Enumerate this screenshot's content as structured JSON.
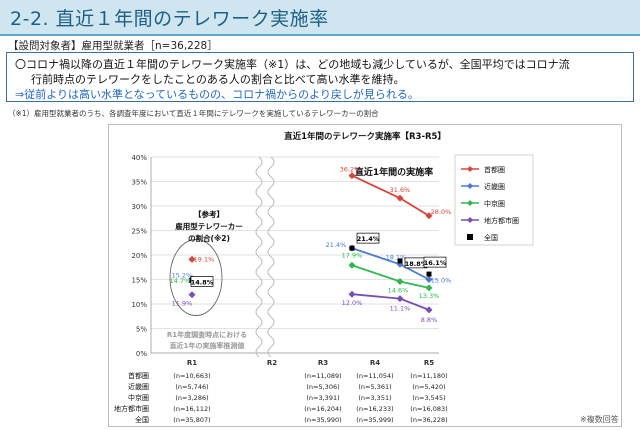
{
  "header": {
    "title": "2-2. 直近１年間のテレワーク実施率"
  },
  "subject": "【設問対象者】雇用型就業者［n=36,228］",
  "summary": {
    "line1": "〇コロナ禍以降の直近１年間のテレワーク実施率（※1）は、どの地域も減少しているが、全国平均ではコロナ流",
    "line2": "行前時点のテレワークをしたことのある人の割合と比べて高い水準を維持。",
    "line3": "⇒従前よりは高い水準となっているものの、コロナ禍からのより戻しが見られる。"
  },
  "footnote": "（※1）雇用型就業者のうち、各調査年度において直近１年間にテレワークを実施しているテレワーカーの割合",
  "footer_text": "※複数回答",
  "chart_data": {
    "type": "line",
    "title": "直近1年間のテレワーク実施率【R3-R5】",
    "categories": [
      "R1",
      "R2",
      "R3",
      "R4",
      "R5"
    ],
    "ylim": [
      0,
      40
    ],
    "yticks": [
      "0%",
      "5%",
      "10%",
      "15%",
      "20%",
      "25%",
      "30%",
      "35%",
      "40%"
    ],
    "grid": true,
    "legend_position": "right",
    "inner_title": "直近1年間の実施率",
    "reference": {
      "label_line1": "【参考】",
      "label_line2": "雇用型テレワーカー",
      "label_line3": "の割合(※2)",
      "note_line1": "R1年度調査時点における",
      "note_line2": "直近1年の実施率推測値"
    },
    "series": [
      {
        "name": "首都圏",
        "color": "#d8463a",
        "marker": "diamond",
        "values": [
          19.1,
          null,
          36.2,
          31.6,
          28.0
        ],
        "labels": [
          "19.1%",
          "",
          "36.2%",
          "31.6%",
          "28.0%"
        ]
      },
      {
        "name": "近畿圏",
        "color": "#4a7bd0",
        "marker": "diamond",
        "values": [
          15.2,
          null,
          21.4,
          18.1,
          15.0
        ],
        "labels": [
          "15.2%",
          "",
          "21.4%",
          "18.1%",
          "15.0%"
        ]
      },
      {
        "name": "中京圏",
        "color": "#2fb84f",
        "marker": "diamond",
        "values": [
          14.7,
          null,
          17.9,
          14.6,
          13.3
        ],
        "labels": [
          "14.7%",
          "",
          "17.9%",
          "14.6%",
          "13.3%"
        ]
      },
      {
        "name": "地方都市圏",
        "color": "#7a4fb0",
        "marker": "diamond",
        "values": [
          11.9,
          null,
          12.0,
          11.1,
          8.8
        ],
        "labels": [
          "11.9%",
          "",
          "12.0%",
          "11.1%",
          "8.8%"
        ]
      },
      {
        "name": "全国",
        "color": "#000000",
        "marker": "square",
        "values": [
          14.8,
          null,
          21.4,
          18.8,
          16.1
        ],
        "labels": [
          "14.8%",
          "",
          "21.4%",
          "18.8%",
          "16.1%"
        ]
      }
    ],
    "table": {
      "rows": [
        {
          "name": "首都圏",
          "cells": [
            "(n=10,663)",
            "",
            "(n=11,089)",
            "(n=11,054)",
            "(n=11,180)"
          ]
        },
        {
          "name": "近畿圏",
          "cells": [
            "(n=5,746)",
            "",
            "(n=5,306)",
            "(n=5,361)",
            "(n=5,420)"
          ]
        },
        {
          "name": "中京圏",
          "cells": [
            "(n=3,286)",
            "",
            "(n=3,391)",
            "(n=3,351)",
            "(n=3,545)"
          ]
        },
        {
          "name": "地方都市圏",
          "cells": [
            "(n=16,112)",
            "",
            "(n=16,204)",
            "(n=16,233)",
            "(n=16,083)"
          ]
        },
        {
          "name": "全国",
          "cells": [
            "(n=35,807)",
            "",
            "(n=35,990)",
            "(n=35,999)",
            "(n=36,228)"
          ]
        }
      ]
    }
  }
}
